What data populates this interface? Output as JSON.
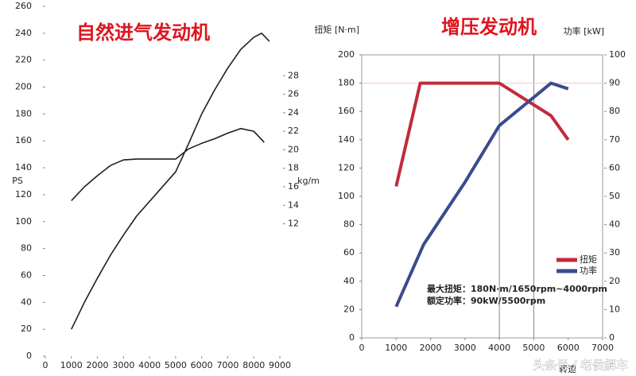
{
  "chart_data": [
    {
      "type": "line",
      "title": "自然进气发动机",
      "ylabel": "PS",
      "y2label": "kg/m",
      "xlim": [
        0,
        9000
      ],
      "xticks": [
        0,
        1000,
        2000,
        3000,
        4000,
        5000,
        6000,
        7000,
        8000,
        9000
      ],
      "ylim": [
        0,
        260
      ],
      "yticks": [
        0,
        20,
        40,
        60,
        80,
        100,
        120,
        140,
        160,
        180,
        200,
        220,
        240,
        260
      ],
      "y2lim": [
        -2.3,
        35.5
      ],
      "y2ticks": [
        12,
        14,
        16,
        18,
        20,
        22,
        24,
        26,
        28
      ],
      "series": [
        {
          "color": "#1e1e1e",
          "x": [
            1000,
            1500,
            2000,
            2500,
            3000,
            3500,
            4000,
            4500,
            5000,
            5500,
            6000,
            6500,
            7000,
            7500,
            8000,
            8300,
            8600
          ],
          "values": [
            20,
            40,
            58,
            75,
            90,
            104,
            115,
            126,
            137,
            158,
            180,
            198,
            214,
            228,
            237,
            240,
            234
          ]
        },
        {
          "color": "#1e1e1e",
          "axis": "y2",
          "x": [
            1000,
            1500,
            2000,
            2500,
            3000,
            3500,
            4000,
            4500,
            5000,
            5500,
            6000,
            6500,
            7000,
            7500,
            8000,
            8400
          ],
          "values": [
            14.5,
            16.0,
            17.2,
            18.3,
            18.9,
            19.0,
            19.0,
            19.0,
            19.0,
            20.1,
            20.7,
            21.2,
            21.8,
            22.3,
            22.0,
            20.8
          ]
        }
      ]
    },
    {
      "type": "line",
      "title": "增压发动机",
      "ylabel": "扭矩 [N·m]",
      "y2label": "功率 [kW]",
      "xlabel": "转速",
      "xlim": [
        0,
        7000
      ],
      "xticks": [
        0,
        1000,
        2000,
        3000,
        4000,
        5000,
        6000,
        7000
      ],
      "ylim": [
        0,
        200
      ],
      "yticks": [
        0,
        20,
        40,
        60,
        80,
        100,
        120,
        140,
        160,
        180,
        200
      ],
      "y2lim": [
        0,
        100
      ],
      "y2ticks": [
        0,
        10,
        20,
        30,
        40,
        50,
        60,
        70,
        80,
        90,
        100
      ],
      "reference_lines": {
        "x": [
          4000,
          5000
        ],
        "y": [
          180
        ]
      },
      "legend": "lower right",
      "series": [
        {
          "name": "扭矩",
          "color": "#c12a3c",
          "x": [
            1000,
            1700,
            4000,
            5500,
            6000
          ],
          "values": [
            107,
            180,
            180,
            157,
            140
          ]
        },
        {
          "name": "功率",
          "color": "#3c4a8e",
          "axis": "y2",
          "x": [
            1000,
            1800,
            3000,
            4000,
            5000,
            5500,
            6000
          ],
          "values": [
            11,
            33,
            55,
            75,
            85,
            90,
            88
          ]
        }
      ],
      "annotations": [
        "最大扭矩：180N·m/1650rpm~4000rpm",
        "额定功率：90kW/5500rpm"
      ]
    }
  ],
  "watermark": "头条号 / 老侯解车"
}
